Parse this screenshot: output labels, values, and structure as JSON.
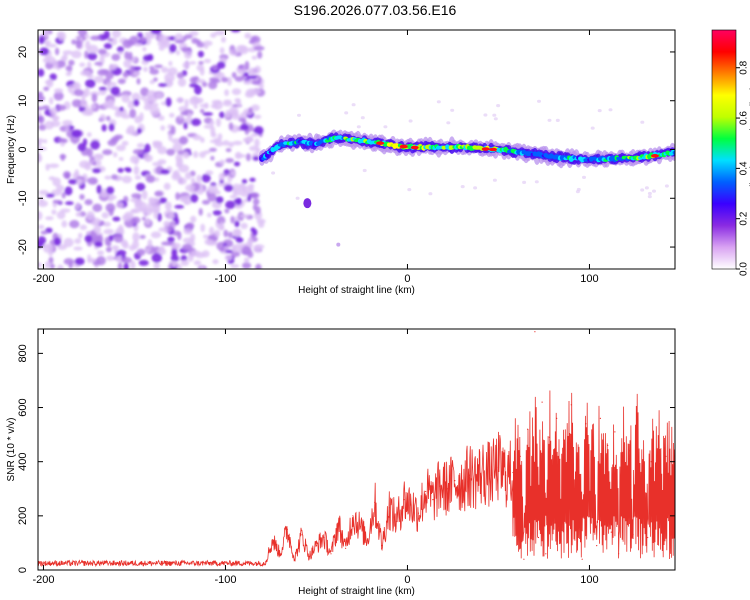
{
  "title": "S196.2026.077.03.56.E16",
  "chart_data": [
    {
      "type": "heatmap",
      "name": "spectrogram",
      "xlabel": "Height of straight line (km)",
      "ylabel": "Frequency (Hz)",
      "xlim": [
        -203,
        147
      ],
      "ylim": [
        -24.5,
        24.5
      ],
      "x_ticks": [
        -200,
        -100,
        0,
        100
      ],
      "x_tick_labels": [
        "-200",
        "-100",
        "0",
        "100"
      ],
      "y_ticks": [
        -20,
        -10,
        0,
        10,
        20
      ],
      "y_tick_labels": [
        "-20",
        "-10",
        "0",
        "10",
        "20"
      ],
      "noise_region_x": [
        -203,
        -80
      ],
      "signal_ridge": {
        "x": [
          -80,
          -70,
          -60,
          -50,
          -40,
          -30,
          -20,
          -10,
          0,
          10,
          20,
          30,
          40,
          50,
          60,
          70,
          80,
          90,
          100,
          110,
          120,
          130,
          140,
          147
        ],
        "frequency": [
          -2,
          1,
          1.5,
          1.2,
          2.5,
          2,
          1.5,
          1,
          0.5,
          0.5,
          0.5,
          0.5,
          0.2,
          0,
          -0.5,
          -1,
          -1.5,
          -1.8,
          -2,
          -2,
          -1.8,
          -1.5,
          -1,
          -0.5
        ],
        "amplitude": [
          0.3,
          0.4,
          0.4,
          0.35,
          0.45,
          0.5,
          0.55,
          0.6,
          0.6,
          0.55,
          0.5,
          0.5,
          0.55,
          0.5,
          0.4,
          0.3,
          0.35,
          0.4,
          0.35,
          0.4,
          0.45,
          0.5,
          0.45,
          0.4
        ]
      },
      "colorbar": {
        "label": "Normalized spectral amplitude",
        "range": [
          0,
          0.95
        ],
        "ticks": [
          0.0,
          0.2,
          0.4,
          0.6,
          0.8
        ],
        "tick_labels": [
          "0.0",
          "0.2",
          "0.4",
          "0.6",
          "0.8"
        ],
        "colors": [
          "#ffffff",
          "#d9a3f2",
          "#8a2be2",
          "#3a00ff",
          "#0060ff",
          "#00e0ff",
          "#00ff40",
          "#c0ff00",
          "#ffff00",
          "#ff8000",
          "#ff0000",
          "#ff0060"
        ]
      }
    },
    {
      "type": "line",
      "name": "snr",
      "xlabel": "Height of straight line (km)",
      "ylabel": "SNR (10 * v/v)",
      "xlim": [
        -203,
        147
      ],
      "ylim": [
        0,
        890
      ],
      "x_ticks": [
        -200,
        -100,
        0,
        100
      ],
      "x_tick_labels": [
        "-200",
        "-100",
        "0",
        "100"
      ],
      "y_ticks": [
        0,
        200,
        400,
        600,
        800
      ],
      "y_tick_labels": [
        "0",
        "200",
        "400",
        "600",
        "800"
      ],
      "series": [
        {
          "name": "SNR",
          "color": "#e8302a",
          "x": [
            -203,
            -195,
            -185,
            -175,
            -165,
            -155,
            -145,
            -135,
            -125,
            -115,
            -105,
            -95,
            -85,
            -78,
            -74,
            -70,
            -66,
            -62,
            -58,
            -54,
            -50,
            -46,
            -42,
            -38,
            -34,
            -30,
            -26,
            -22,
            -18,
            -14,
            -10,
            -6,
            -2,
            2,
            6,
            10,
            14,
            18,
            22,
            26,
            30,
            34,
            38,
            42,
            46,
            50,
            54,
            58,
            60,
            62,
            64,
            66,
            68,
            70,
            72,
            74,
            76,
            78,
            80,
            82,
            84,
            86,
            88,
            90,
            92,
            94,
            96,
            98,
            100,
            102,
            104,
            106,
            108,
            110,
            112,
            114,
            116,
            118,
            120,
            122,
            124,
            126,
            128,
            130,
            132,
            134,
            136,
            138,
            140,
            142,
            144,
            146
          ],
          "y": [
            20,
            25,
            18,
            22,
            30,
            20,
            24,
            18,
            22,
            28,
            20,
            24,
            22,
            30,
            110,
            60,
            150,
            40,
            130,
            50,
            90,
            120,
            60,
            170,
            80,
            200,
            160,
            110,
            250,
            90,
            230,
            180,
            260,
            240,
            210,
            290,
            260,
            310,
            300,
            330,
            320,
            350,
            340,
            360,
            350,
            380,
            350,
            360,
            330,
            420,
            40,
            520,
            230,
            880,
            120,
            620,
            60,
            490,
            290,
            560,
            110,
            480,
            360,
            610,
            170,
            420,
            40,
            540,
            260,
            380,
            90,
            560,
            250,
            460,
            140,
            510,
            60,
            380,
            310,
            440,
            130,
            420,
            270,
            360,
            120,
            400,
            260,
            480,
            200,
            420,
            300,
            340
          ]
        }
      ]
    }
  ]
}
